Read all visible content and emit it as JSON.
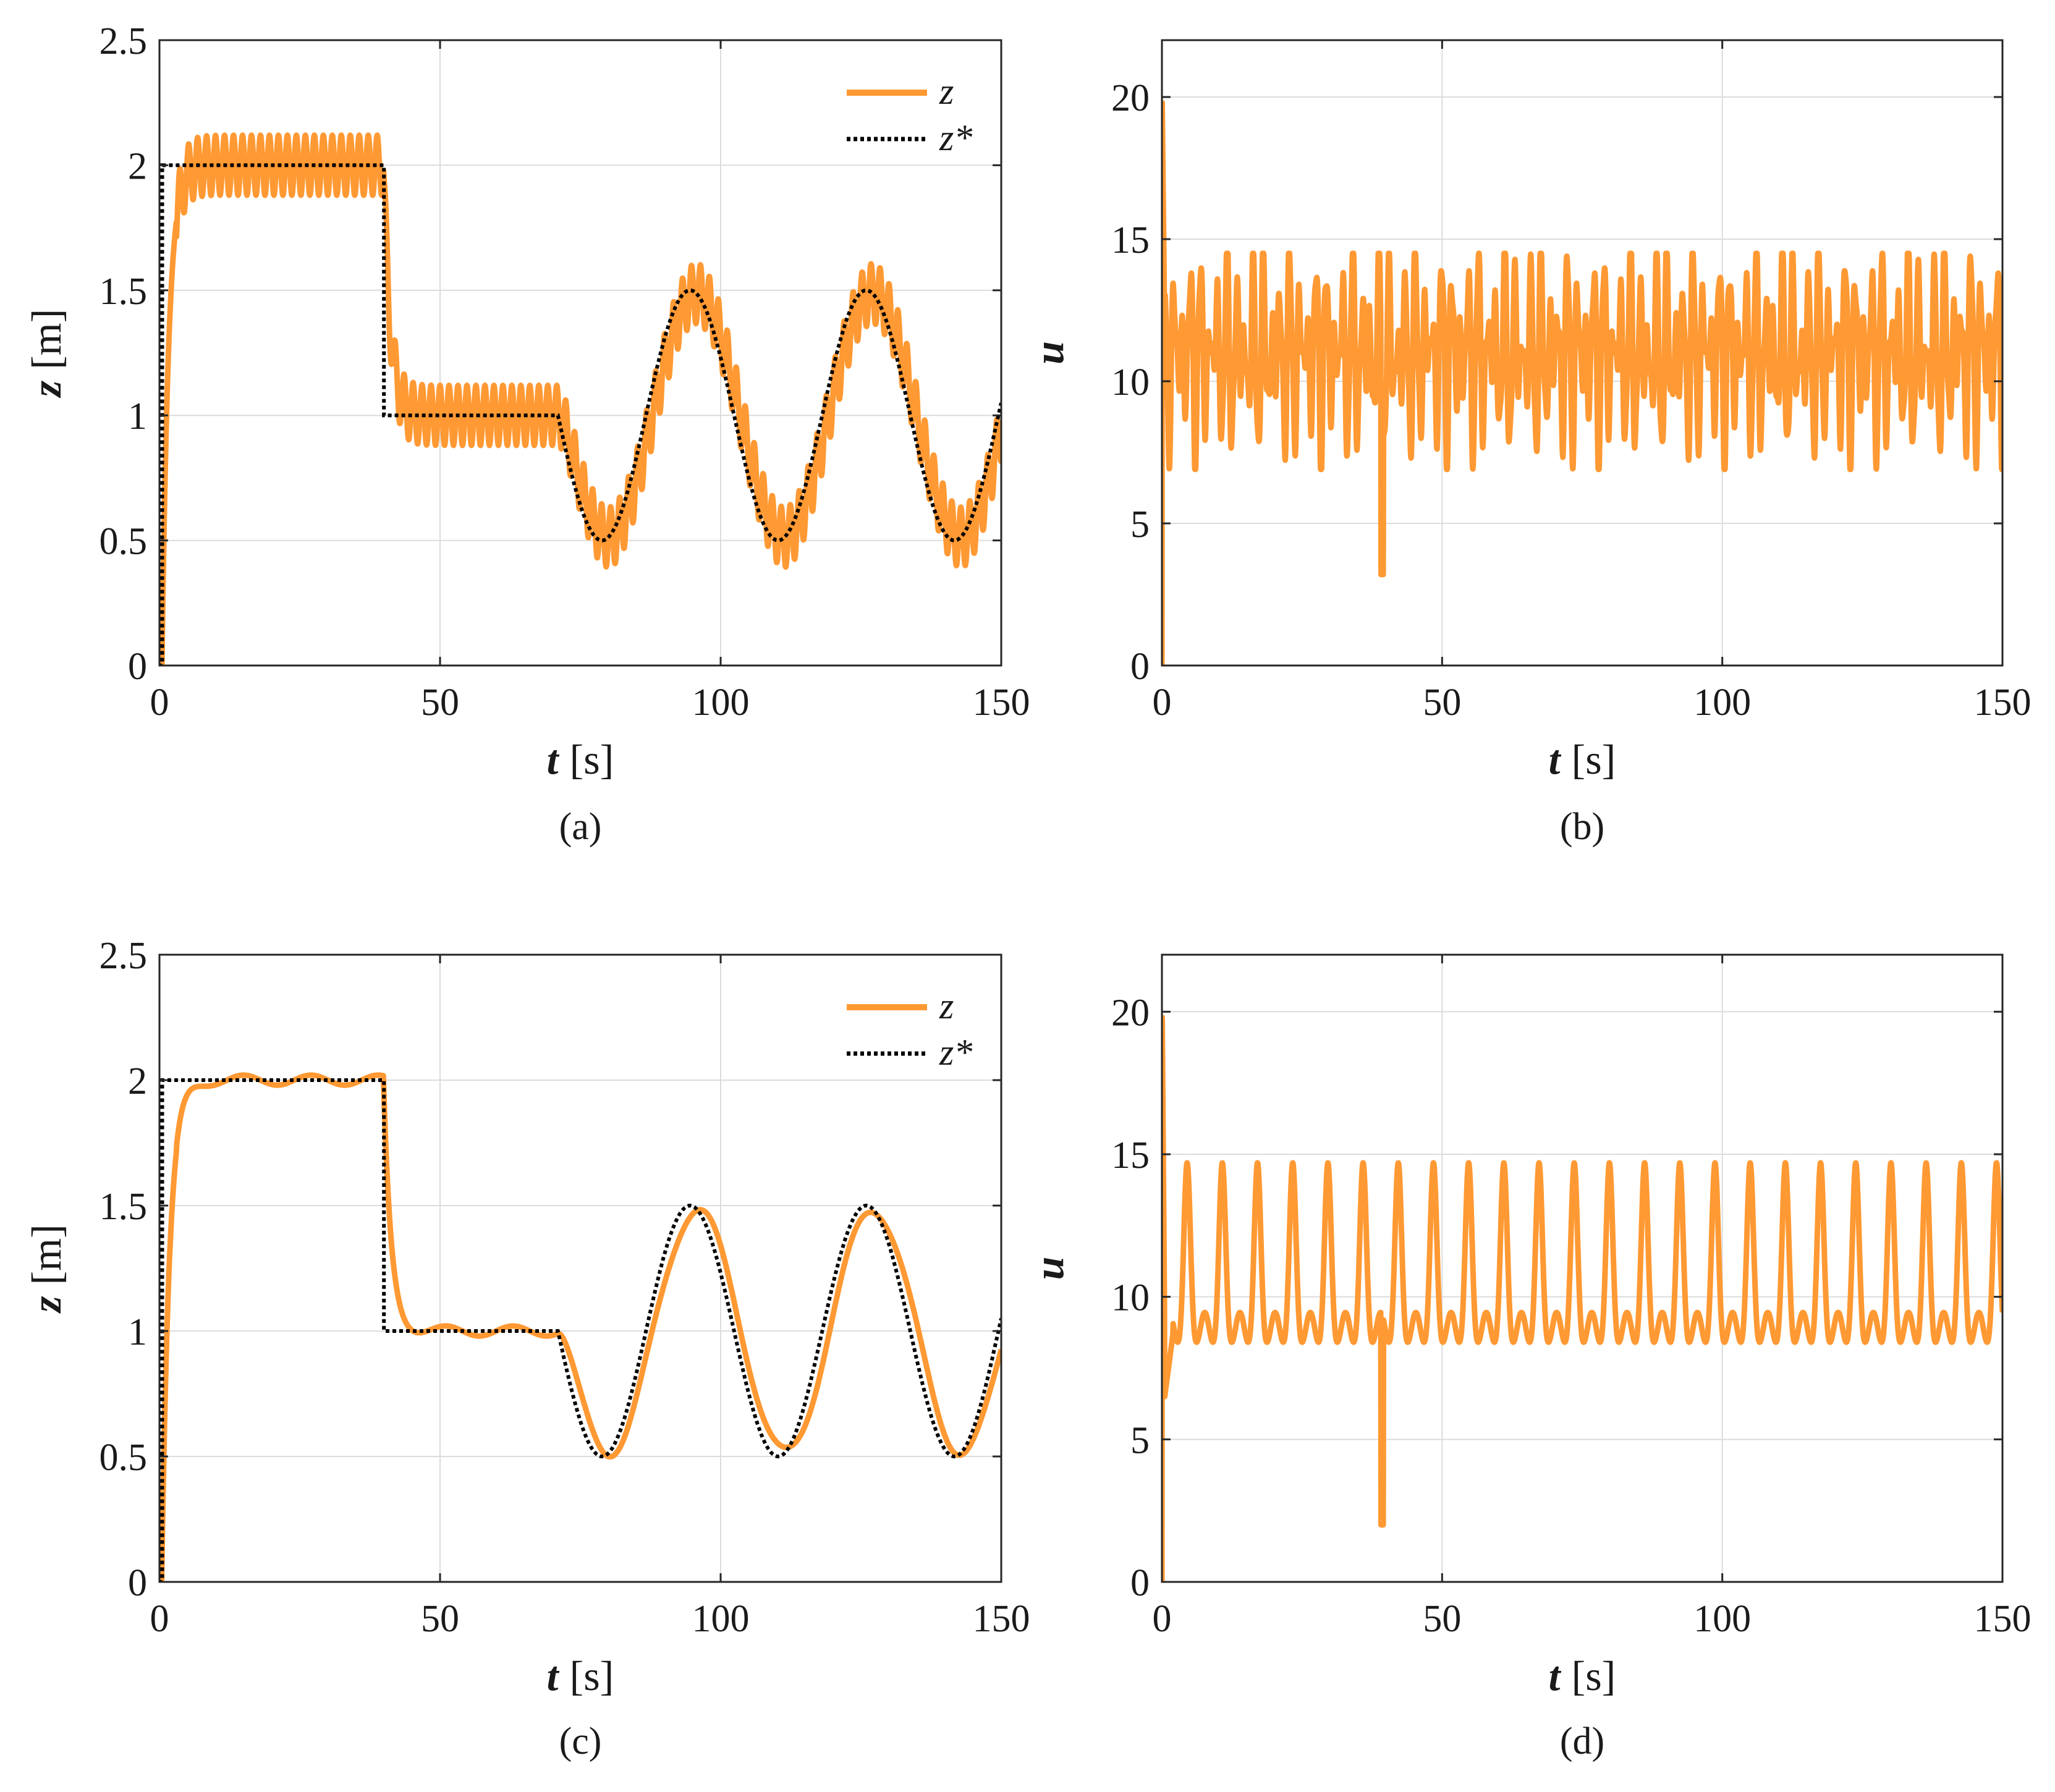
{
  "colors": {
    "series_color": "#ff9933",
    "reference_color": "#000000",
    "grid_color": "#dcdcdc",
    "axis_color": "#262626"
  },
  "chart_data": [
    {
      "type": "line",
      "caption": "(a)",
      "xlabel_var": "t",
      "xlabel_unit": "[s]",
      "ylabel_var": "z",
      "ylabel_unit": "[m]",
      "xlim": [
        0,
        150
      ],
      "ylim": [
        0,
        2.5
      ],
      "xticks": [
        "0",
        "50",
        "100",
        "150"
      ],
      "yticks": [
        "0",
        "0.5",
        "1",
        "1.5",
        "2",
        "2.5"
      ],
      "grid": true,
      "legend_position": "top-right",
      "series": [
        {
          "name": "z",
          "style": "solid",
          "description": "output with sustained oscillation of amplitude ~0.12 (period ~1.6 s) around reference"
        },
        {
          "name": "z*",
          "style": "dotted",
          "description": "reference: 2 for 0-40 s, 1 for 40-71 s, then 1 - 0.5*sin(2*pi*(t-71)/31.4)"
        }
      ],
      "ripple_amplitude": 0.12,
      "ripple_period": 1.6
    },
    {
      "type": "line",
      "caption": "(b)",
      "xlabel_var": "t",
      "xlabel_unit": "[s]",
      "ylabel_var": "u",
      "ylabel_unit": "",
      "xlim": [
        0,
        150
      ],
      "ylim": [
        0,
        22
      ],
      "xticks": [
        "0",
        "50",
        "100",
        "150"
      ],
      "yticks": [
        "0",
        "5",
        "10",
        "15",
        "20"
      ],
      "grid": true,
      "series": [
        {
          "name": "",
          "style": "solid",
          "description": "control input oscillating roughly between 7 and 14.5, spike to 20 at t=0, dip to 3.2 at t=40"
        }
      ],
      "u_min": 7,
      "u_max": 14.5,
      "u_peak_start": 19.8,
      "u_dip_at_40": 3.2
    },
    {
      "type": "line",
      "caption": "(c)",
      "xlabel_var": "t",
      "xlabel_unit": "[s]",
      "ylabel_var": "z",
      "ylabel_unit": "[m]",
      "xlim": [
        0,
        150
      ],
      "ylim": [
        0,
        2.5
      ],
      "xticks": [
        "0",
        "50",
        "100",
        "150"
      ],
      "yticks": [
        "0",
        "0.5",
        "1",
        "1.5",
        "2",
        "2.5"
      ],
      "grid": true,
      "legend_position": "top-right",
      "series": [
        {
          "name": "z",
          "style": "solid",
          "description": "output tracking reference closely with small damped ripple (~0.02)"
        },
        {
          "name": "z*",
          "style": "dotted",
          "description": "reference: 2 for 0-40 s, 1 for 40-71 s, then 1 - 0.5*sin(2*pi*(t-71)/31.4)"
        }
      ],
      "ripple_amplitude": 0.02,
      "ripple_period": 12
    },
    {
      "type": "line",
      "caption": "(d)",
      "xlabel_var": "t",
      "xlabel_unit": "[s]",
      "ylabel_var": "u",
      "ylabel_unit": "",
      "xlim": [
        0,
        150
      ],
      "ylim": [
        0,
        22
      ],
      "xticks": [
        "0",
        "50",
        "100",
        "150"
      ],
      "yticks": [
        "0",
        "5",
        "10",
        "15",
        "20"
      ],
      "grid": true,
      "series": [
        {
          "name": "",
          "style": "solid",
          "description": "control input with regular peaks at 14.5 (period ~6.3 s) and troughs near 8.6, spike to 20 at t=0, dip to 2 at t=40"
        }
      ],
      "u_min": 8.6,
      "u_max": 14.5,
      "u_peak_start": 19.8,
      "u_dip_at_40": 2.0
    }
  ]
}
